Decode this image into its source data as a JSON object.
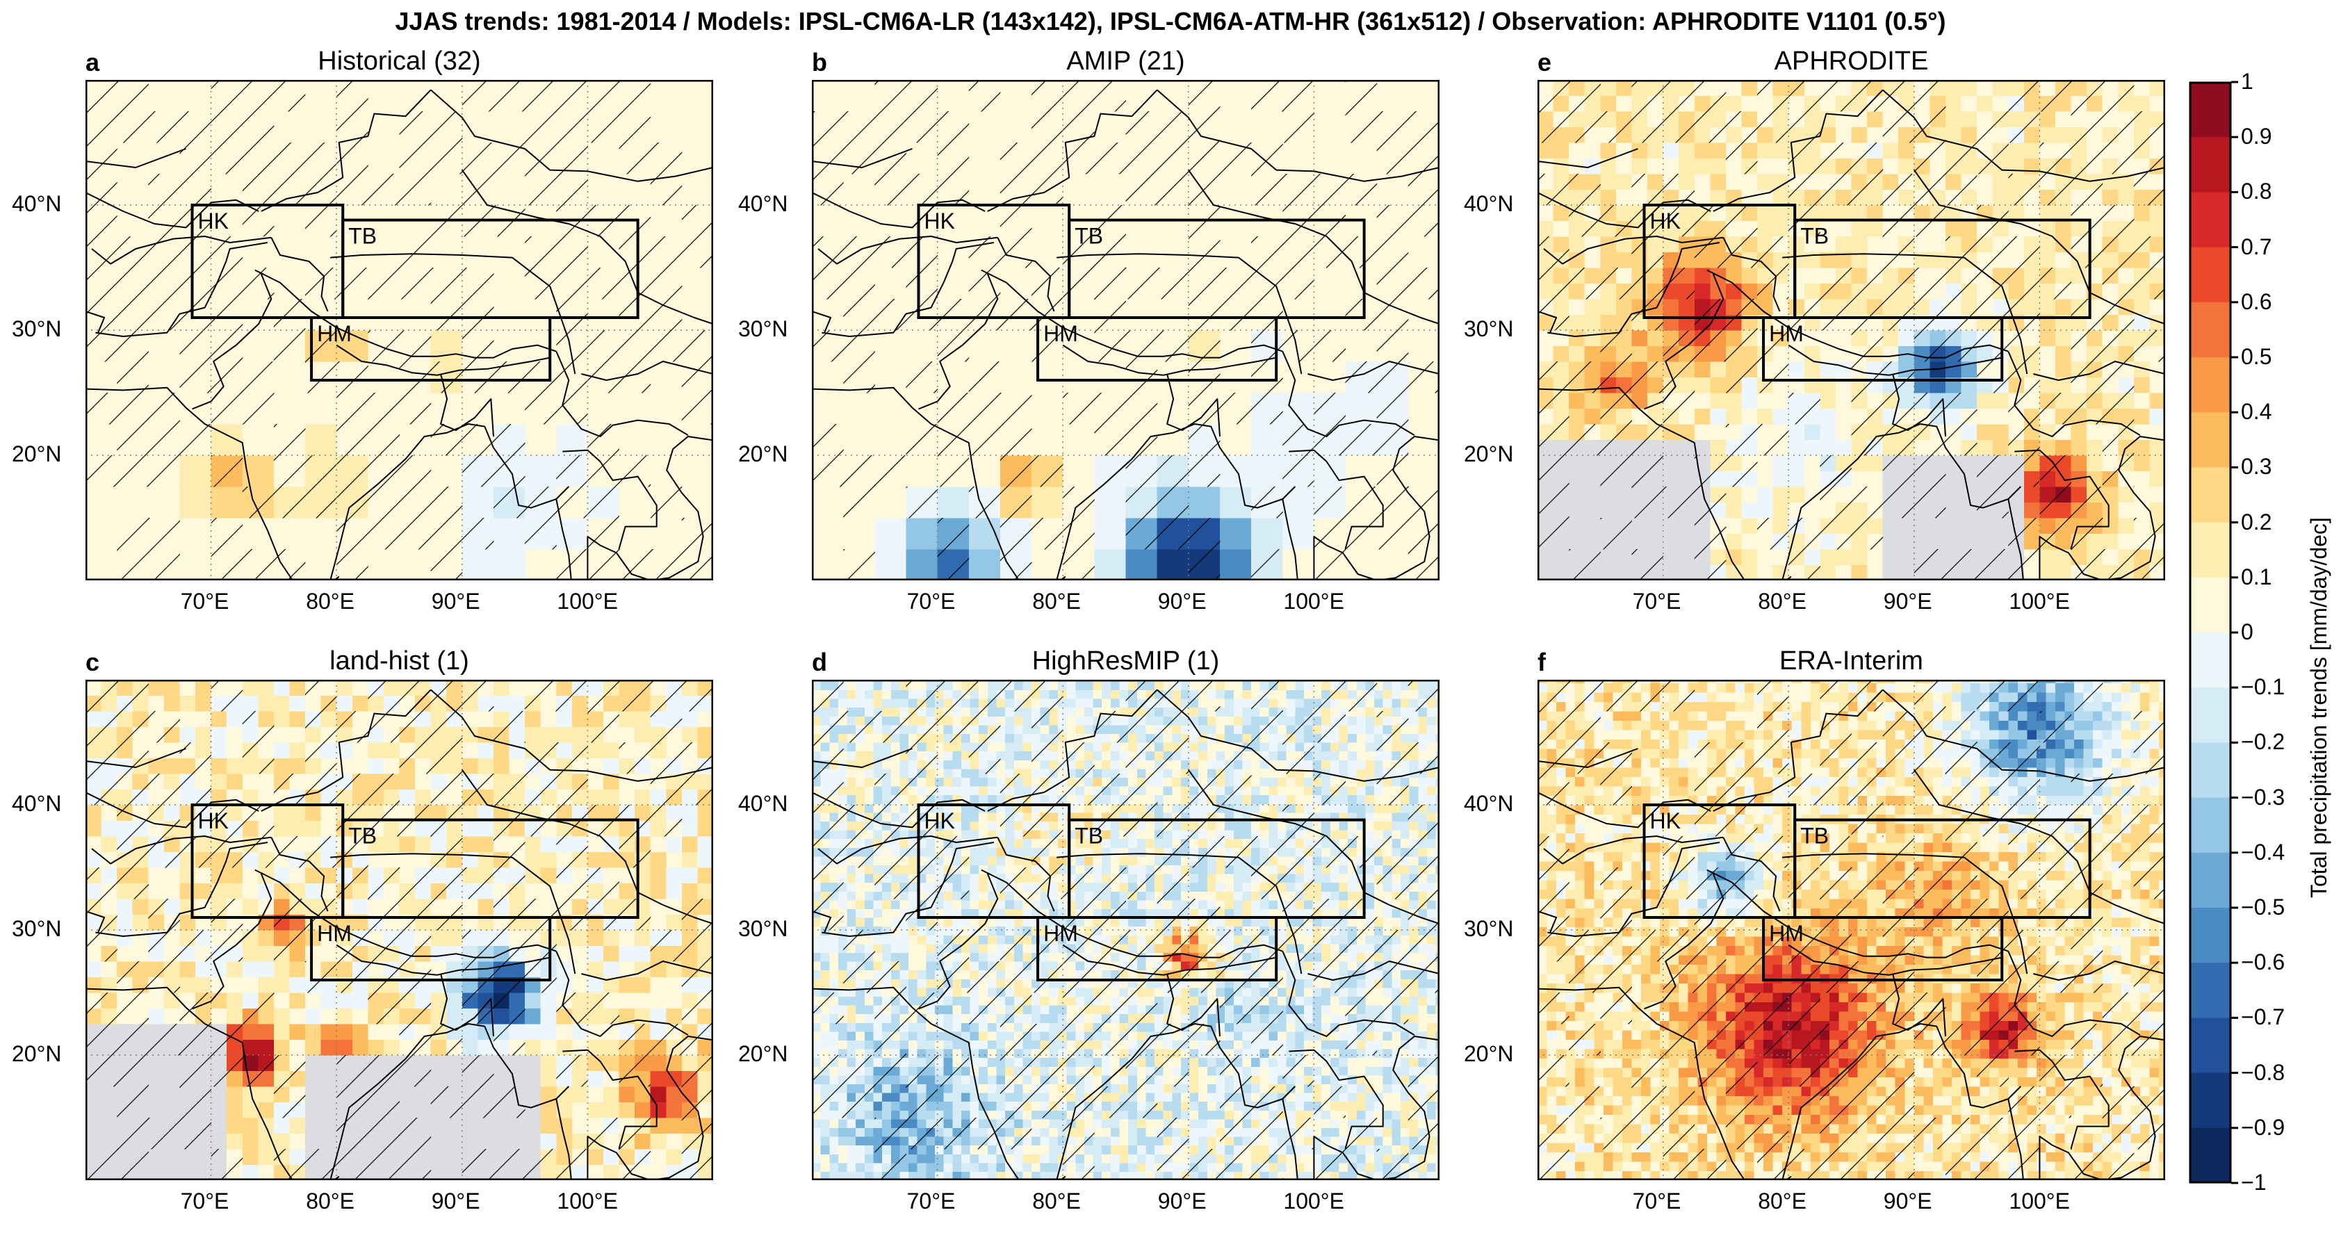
{
  "figure_title": "JJAS trends: 1981-2014 / Models: IPSL-CM6A-LR (143x142), IPSL-CM6A-ATM-HR (361x512) / Observation: APHRODITE V1101 (0.5°)",
  "lat_ticks": [
    "40°N",
    "30°N",
    "20°N"
  ],
  "lon_ticks": [
    "70°E",
    "80°E",
    "90°E",
    "100°E"
  ],
  "regions": [
    "HK",
    "TB",
    "HM"
  ],
  "panels": [
    {
      "letter": "a",
      "title": "Historical (32)",
      "pattern": "hist"
    },
    {
      "letter": "b",
      "title": "AMIP (21)",
      "pattern": "amip"
    },
    {
      "letter": "e",
      "title": "APHRODITE",
      "pattern": "aph"
    },
    {
      "letter": "c",
      "title": "land-hist (1)",
      "pattern": "land"
    },
    {
      "letter": "d",
      "title": "HighResMIP (1)",
      "pattern": "hres"
    },
    {
      "letter": "f",
      "title": "ERA-Interim",
      "pattern": "era"
    }
  ],
  "colorbar": {
    "label": "Total precipitation trends [mm/day/dec]",
    "ticks": [
      "1",
      "0.9",
      "0.8",
      "0.7",
      "0.6",
      "0.5",
      "0.4",
      "0.3",
      "0.2",
      "0.1",
      "0",
      "−0.1",
      "−0.2",
      "−0.3",
      "−0.4",
      "−0.5",
      "−0.6",
      "−0.7",
      "−0.8",
      "−0.9",
      "−1"
    ],
    "colors": [
      "#8f0d1e",
      "#b8171f",
      "#d7282a",
      "#ea4a2a",
      "#f4733b",
      "#f99a47",
      "#fcbc5e",
      "#fed885",
      "#feedb0",
      "#fef8dc",
      "#ecf6fb",
      "#d5ecf6",
      "#b8dcef",
      "#94c7e5",
      "#6aaad5",
      "#4a8bc4",
      "#326cb0",
      "#20519a",
      "#143a7c",
      "#0c2a5e"
    ]
  }
}
